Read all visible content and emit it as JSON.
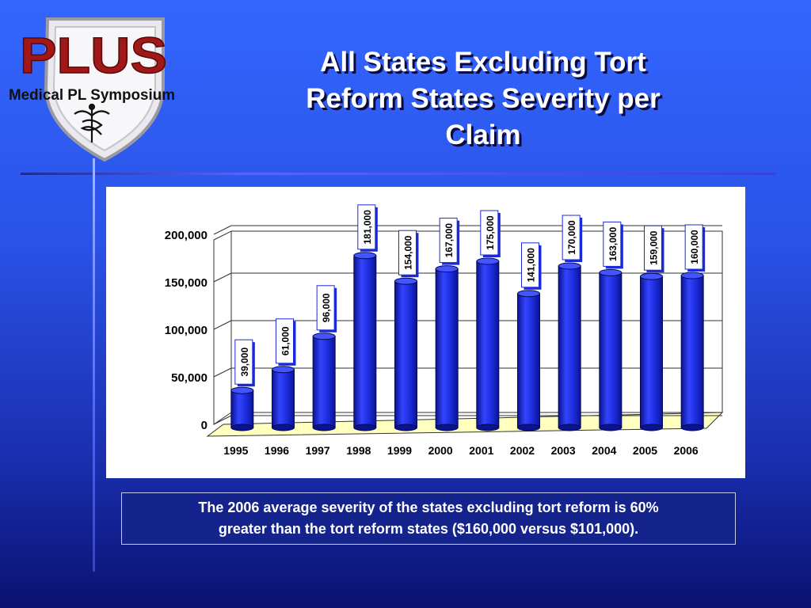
{
  "logo": {
    "brand": "PLUS",
    "subtitle": "Medical PL Symposium",
    "emblem": "caduceus-icon",
    "brand_color": "#a01818"
  },
  "slide": {
    "title_lines": [
      "All States Excluding Tort",
      "Reform States Severity per",
      "Claim"
    ],
    "caption_lines": [
      "The 2006 average severity of the states excluding tort reform is 60%",
      "greater than the tort reform states ($160,000 versus $101,000)."
    ]
  },
  "chart_data": {
    "type": "bar",
    "categories": [
      "1995",
      "1996",
      "1997",
      "1998",
      "1999",
      "2000",
      "2001",
      "2002",
      "2003",
      "2004",
      "2005",
      "2006"
    ],
    "values": [
      39000,
      61000,
      96000,
      181000,
      154000,
      167000,
      175000,
      141000,
      170000,
      163000,
      159000,
      160000
    ],
    "data_labels": [
      "39,000",
      "61,000",
      "96,000",
      "181,000",
      "154,000",
      "167,000",
      "175,000",
      "141,000",
      "170,000",
      "163,000",
      "159,000",
      "160,000"
    ],
    "ylim": [
      0,
      200000
    ],
    "yticks": [
      0,
      50000,
      100000,
      150000,
      200000
    ],
    "ytick_labels": [
      "0",
      "50,000",
      "100,000",
      "150,000",
      "200,000"
    ],
    "grid": true,
    "bar_color": "#1a2ad8",
    "floor_color": "#ffffc0",
    "title": "",
    "xlabel": "",
    "ylabel": ""
  }
}
